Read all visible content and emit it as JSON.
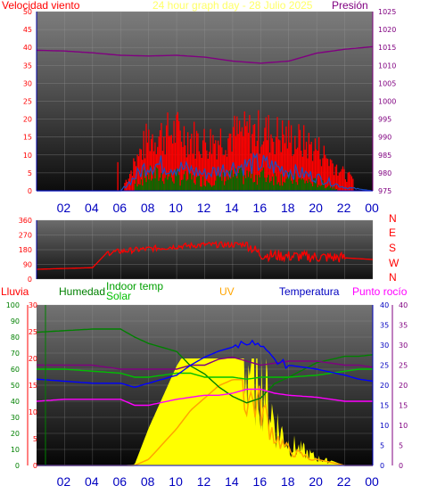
{
  "title": "24 hour graph day - 28 Julio 2025",
  "colors": {
    "wind": "#ff0000",
    "gust": "#ff0000",
    "avg": "#1a4fc0",
    "winddir_dark": "#006000",
    "pressure": "#800080",
    "humidity": "#008000",
    "indoor": "#00c000",
    "solar": "#ffff00",
    "uv": "#ffa500",
    "temp": "#0000ff",
    "dew": "#ff00ff",
    "rain": "#ff0000",
    "axis_blue": "#0000c0",
    "title": "#ffff66"
  },
  "x_ticks": [
    "02",
    "04",
    "06",
    "08",
    "10",
    "12",
    "14",
    "16",
    "18",
    "20",
    "22",
    "00"
  ],
  "chart_data": [
    {
      "type": "line",
      "name": "wind-pressure",
      "left_label": "Velocidad viento",
      "right_label": "Presión",
      "left_ticks": [
        "0",
        "5",
        "10",
        "15",
        "20",
        "25",
        "30",
        "35",
        "40",
        "45",
        "50"
      ],
      "right_ticks": [
        "975",
        "980",
        "985",
        "990",
        "995",
        "1000",
        "1005",
        "1010",
        "1015",
        "1020",
        "1025"
      ],
      "ylim_left": [
        0,
        50
      ],
      "ylim_right": [
        975,
        1025
      ],
      "x_hours": [
        0,
        2,
        4,
        6,
        8,
        10,
        12,
        14,
        16,
        18,
        20,
        22,
        24
      ],
      "pressure": [
        1014.2,
        1014.0,
        1013.5,
        1012.8,
        1012.6,
        1012.8,
        1012.3,
        1011.2,
        1010.6,
        1011.2,
        1013.4,
        1014.5,
        1015.2
      ],
      "gust_peak": [
        0,
        0,
        0,
        0,
        20,
        22,
        18,
        21,
        22,
        20,
        16,
        6,
        0
      ],
      "avg_wind": [
        0,
        0,
        0,
        0,
        8,
        7,
        5,
        7,
        8,
        6,
        4,
        1,
        0
      ]
    },
    {
      "type": "line",
      "name": "wind-direction",
      "left_ticks": [
        "0",
        "90",
        "180",
        "270",
        "360"
      ],
      "right_ticks": [
        "N",
        "W",
        "S",
        "E",
        "N"
      ],
      "ylim": [
        0,
        360
      ],
      "x_hours": [
        0,
        2,
        4,
        5,
        6,
        8,
        10,
        12,
        14,
        15,
        16,
        18,
        20,
        22,
        24
      ],
      "direction": [
        60,
        65,
        70,
        160,
        170,
        185,
        200,
        210,
        210,
        215,
        150,
        140,
        135,
        130,
        120
      ]
    },
    {
      "type": "line",
      "name": "temp-humidity-solar",
      "labels": {
        "rain": "Lluvia",
        "humidity": "Humedad",
        "indoor": "Indoor temp",
        "solar": "Solar",
        "uv": "UV",
        "temp": "Temperatura",
        "dew": "Punto rocío"
      },
      "humidity_ticks": [
        "0",
        "10",
        "20",
        "30",
        "40",
        "50",
        "60",
        "70",
        "80",
        "90",
        "100"
      ],
      "rain_ticks": [
        "0",
        "5",
        "10",
        "15",
        "20",
        "25",
        "30"
      ],
      "temp_ticks_inner": [
        "0",
        "5",
        "10",
        "15",
        "20",
        "25",
        "30",
        "35",
        "40"
      ],
      "temp_ticks_outer": [
        "0",
        "5",
        "10",
        "15",
        "20",
        "25",
        "30",
        "35",
        "40"
      ],
      "x_hours": [
        0,
        2,
        4,
        6,
        7,
        8,
        10,
        11,
        12,
        13,
        14,
        15,
        16,
        17,
        18,
        20,
        22,
        23,
        24
      ],
      "humidity": [
        83,
        84,
        85,
        85,
        80,
        76,
        71,
        62,
        57,
        49,
        43,
        39,
        42,
        51,
        55,
        64,
        68,
        68,
        69
      ],
      "temp": [
        21.5,
        21,
        20.5,
        20.5,
        19.5,
        20.5,
        22.5,
        25,
        27,
        28.5,
        29.5,
        31,
        29.5,
        26,
        25,
        24,
        22.5,
        21.5,
        21
      ],
      "dew": [
        16,
        16.5,
        16.5,
        16.5,
        15,
        15,
        16.5,
        17,
        17.5,
        17.5,
        18,
        19,
        19,
        18,
        17.5,
        17,
        16,
        16,
        16
      ],
      "indoor": [
        24,
        24,
        23.5,
        23,
        22,
        22,
        23,
        23,
        22,
        22,
        22,
        21.5,
        22,
        22,
        22,
        22.5,
        23.5,
        24,
        24
      ],
      "pressure_mid": [
        25,
        25,
        25,
        24,
        24,
        24,
        24,
        25,
        25,
        26.5,
        27,
        26,
        25,
        25.5,
        26,
        26,
        25,
        25,
        24.5
      ],
      "solar": [
        0,
        0,
        0,
        0,
        5,
        180,
        480,
        590,
        660,
        700,
        720,
        710,
        650,
        300,
        150,
        50,
        0,
        0,
        0
      ],
      "uv": [
        0,
        0,
        0,
        0,
        0,
        1,
        6,
        9,
        11,
        13,
        14,
        14,
        12,
        6,
        3,
        1,
        0,
        0,
        0
      ]
    }
  ]
}
